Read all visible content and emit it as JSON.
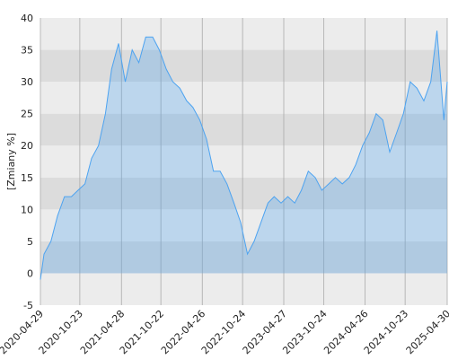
{
  "chart_data": {
    "type": "area",
    "y_label": "[Zmiany %]",
    "x": [
      "2020-04-29",
      "2020-05-15",
      "2020-06-15",
      "2020-07-15",
      "2020-08-15",
      "2020-09-15",
      "2020-10-15",
      "2020-11-15",
      "2020-12-15",
      "2021-01-15",
      "2021-02-15",
      "2021-03-15",
      "2021-04-15",
      "2021-05-15",
      "2021-06-15",
      "2021-07-15",
      "2021-08-15",
      "2021-09-15",
      "2021-10-15",
      "2021-11-15",
      "2021-12-15",
      "2022-01-15",
      "2022-02-15",
      "2022-03-15",
      "2022-04-15",
      "2022-05-15",
      "2022-06-15",
      "2022-07-15",
      "2022-08-15",
      "2022-09-15",
      "2022-10-15",
      "2022-11-15",
      "2022-12-15",
      "2023-01-15",
      "2023-02-15",
      "2023-03-15",
      "2023-04-15",
      "2023-05-15",
      "2023-06-15",
      "2023-07-15",
      "2023-08-15",
      "2023-09-15",
      "2023-10-15",
      "2023-11-15",
      "2023-12-15",
      "2024-01-15",
      "2024-02-15",
      "2024-03-15",
      "2024-04-15",
      "2024-05-15",
      "2024-06-15",
      "2024-07-15",
      "2024-08-15",
      "2024-09-15",
      "2024-10-15",
      "2024-11-15",
      "2024-12-15",
      "2025-01-15",
      "2025-02-15",
      "2025-03-15",
      "2025-04-15",
      "2025-04-30"
    ],
    "values": [
      -1,
      3,
      5,
      9,
      12,
      12,
      13,
      14,
      18,
      20,
      25,
      32,
      36,
      30,
      35,
      33,
      37,
      37,
      35,
      32,
      30,
      29,
      27,
      26,
      24,
      21,
      16,
      16,
      14,
      11,
      8,
      3,
      5,
      8,
      11,
      12,
      11,
      12,
      11,
      13,
      16,
      15,
      13,
      14,
      15,
      14,
      15,
      17,
      20,
      22,
      25,
      24,
      19,
      22,
      25,
      30,
      29,
      27,
      30,
      38,
      24,
      30
    ],
    "color": "#4da3f0",
    "xlim": [
      "2020-04-29",
      "2025-04-30"
    ],
    "xticks": [
      "2020-04-29",
      "2020-10-23",
      "2021-04-28",
      "2021-10-22",
      "2022-04-26",
      "2022-10-24",
      "2023-04-27",
      "2023-10-24",
      "2024-04-26",
      "2024-10-23",
      "2025-04-30"
    ],
    "ylim": [
      -5,
      40
    ],
    "yticks": [
      -5,
      0,
      5,
      10,
      15,
      20,
      25,
      30,
      35,
      40
    ],
    "grid": true
  }
}
